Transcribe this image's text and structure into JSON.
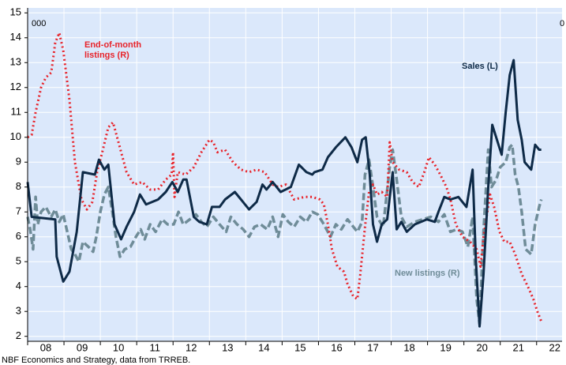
{
  "chart_data": {
    "type": "line",
    "unit_label_left": "000",
    "unit_label_right": "0",
    "source": "NBF Economics and Strategy, data from TRREB.",
    "ylim": [
      1.8,
      15.2
    ],
    "yticks": [
      2,
      3,
      4,
      5,
      6,
      7,
      8,
      9,
      10,
      11,
      12,
      13,
      14,
      15
    ],
    "xlim": [
      2008,
      2022.7
    ],
    "xticks": [
      {
        "value": 2008.5,
        "label": "08"
      },
      {
        "value": 2009.5,
        "label": "09"
      },
      {
        "value": 2010.5,
        "label": "10"
      },
      {
        "value": 2011.5,
        "label": "11"
      },
      {
        "value": 2012.5,
        "label": "12"
      },
      {
        "value": 2013.5,
        "label": "13"
      },
      {
        "value": 2014.5,
        "label": "14"
      },
      {
        "value": 2015.5,
        "label": "15"
      },
      {
        "value": 2016.5,
        "label": "16"
      },
      {
        "value": 2017.5,
        "label": "17"
      },
      {
        "value": 2018.5,
        "label": "18"
      },
      {
        "value": 2019.5,
        "label": "19"
      },
      {
        "value": 2020.5,
        "label": "20"
      },
      {
        "value": 2021.5,
        "label": "21"
      },
      {
        "value": 2022.5,
        "label": "22"
      }
    ],
    "grid": true,
    "background": "#dbe8fb",
    "series": [
      {
        "name": "Sales (L)",
        "color": "#0e2a47",
        "style": "solid",
        "x": [
          2008.0,
          2008.11,
          2008.76,
          2008.8,
          2008.98,
          2009.15,
          2009.35,
          2009.52,
          2009.85,
          2009.96,
          2010.11,
          2010.22,
          2010.39,
          2010.57,
          2010.72,
          2010.93,
          2011.09,
          2011.26,
          2011.59,
          2011.8,
          2011.98,
          2012.13,
          2012.28,
          2012.37,
          2012.57,
          2012.72,
          2012.93,
          2013.07,
          2013.28,
          2013.43,
          2013.7,
          2013.87,
          2014.09,
          2014.3,
          2014.46,
          2014.57,
          2014.74,
          2014.96,
          2015.24,
          2015.46,
          2015.67,
          2015.83,
          2015.89,
          2016.11,
          2016.26,
          2016.48,
          2016.74,
          2016.91,
          2017.07,
          2017.2,
          2017.3,
          2017.41,
          2017.5,
          2017.61,
          2017.74,
          2017.89,
          2018.04,
          2018.15,
          2018.28,
          2018.43,
          2018.65,
          2018.98,
          2019.2,
          2019.3,
          2019.46,
          2019.63,
          2019.85,
          2020.07,
          2020.24,
          2020.33,
          2020.43,
          2020.54,
          2020.67,
          2020.78,
          2020.93,
          2021.04,
          2021.15,
          2021.26,
          2021.37,
          2021.48,
          2021.59,
          2021.67,
          2021.85,
          2021.96,
          2022.07,
          2022.13
        ],
        "values": [
          8.2,
          6.8,
          6.7,
          5.2,
          4.2,
          4.6,
          6.2,
          8.6,
          8.5,
          9.1,
          8.7,
          8.9,
          6.5,
          5.9,
          6.4,
          7.0,
          7.7,
          7.3,
          7.5,
          7.8,
          8.2,
          7.8,
          8.3,
          8.3,
          6.8,
          6.6,
          6.5,
          7.2,
          7.2,
          7.5,
          7.8,
          7.5,
          7.1,
          7.4,
          8.1,
          7.9,
          8.2,
          7.8,
          8.0,
          8.9,
          8.6,
          8.5,
          8.6,
          8.7,
          9.2,
          9.6,
          10.0,
          9.6,
          9.0,
          9.9,
          10.0,
          8.5,
          6.5,
          5.8,
          6.5,
          6.7,
          8.6,
          6.3,
          6.6,
          6.2,
          6.5,
          6.7,
          6.6,
          7.0,
          7.6,
          7.5,
          7.6,
          7.2,
          8.7,
          5.0,
          2.4,
          4.5,
          8.0,
          10.5,
          9.8,
          9.3,
          11.0,
          12.5,
          13.1,
          10.7,
          9.9,
          9.0,
          8.7,
          9.7,
          9.5,
          9.5
        ]
      },
      {
        "name": "End-of-month listings (R)",
        "color": "#e8232a",
        "style": "dotted",
        "x": [
          2008.0,
          2008.11,
          2008.22,
          2008.37,
          2008.5,
          2008.65,
          2008.76,
          2008.87,
          2008.98,
          2009.15,
          2009.3,
          2009.48,
          2009.63,
          2009.78,
          2009.91,
          2010.07,
          2010.22,
          2010.35,
          2010.5,
          2010.72,
          2010.93,
          2011.15,
          2011.37,
          2011.59,
          2011.8,
          2011.96,
          2012.0,
          2012.04,
          2012.13,
          2012.35,
          2012.57,
          2012.78,
          2013.0,
          2013.11,
          2013.22,
          2013.43,
          2013.65,
          2013.87,
          2014.09,
          2014.3,
          2014.52,
          2014.74,
          2014.89,
          2015.11,
          2015.33,
          2015.61,
          2015.83,
          2016.04,
          2016.15,
          2016.26,
          2016.37,
          2016.52,
          2016.7,
          2016.8,
          2016.96,
          2017.07,
          2017.15,
          2017.28,
          2017.39,
          2017.5,
          2017.61,
          2017.74,
          2017.89,
          2017.96,
          2018.04,
          2018.22,
          2018.43,
          2018.59,
          2018.76,
          2018.91,
          2019.04,
          2019.2,
          2019.35,
          2019.52,
          2019.63,
          2019.78,
          2019.96,
          2020.17,
          2020.35,
          2020.46,
          2020.54,
          2020.72,
          2020.83,
          2020.98,
          2021.11,
          2021.26,
          2021.41,
          2021.59,
          2021.76,
          2021.91,
          2022.02,
          2022.13
        ],
        "values": [
          10.0,
          10.1,
          11.0,
          12.0,
          12.4,
          12.6,
          13.8,
          14.2,
          13.5,
          11.5,
          9.0,
          7.5,
          7.1,
          7.4,
          8.6,
          9.5,
          10.4,
          10.6,
          9.8,
          8.6,
          8.1,
          8.2,
          7.9,
          7.9,
          8.3,
          8.5,
          9.4,
          7.6,
          8.6,
          8.5,
          8.8,
          9.4,
          9.9,
          9.8,
          9.4,
          9.5,
          9.0,
          8.7,
          8.6,
          8.7,
          8.6,
          8.1,
          8.0,
          8.1,
          7.5,
          7.6,
          7.6,
          7.5,
          7.3,
          6.5,
          5.5,
          4.8,
          4.6,
          4.1,
          3.6,
          3.5,
          4.5,
          6.4,
          7.8,
          8.1,
          7.7,
          7.8,
          7.6,
          9.8,
          9.0,
          8.7,
          8.6,
          8.2,
          8.0,
          8.6,
          9.2,
          8.9,
          8.5,
          8.0,
          7.5,
          6.5,
          6.0,
          5.8,
          5.5,
          4.8,
          6.0,
          7.7,
          7.2,
          6.2,
          5.8,
          5.8,
          5.3,
          4.5,
          4.0,
          3.5,
          3.0,
          2.6
        ]
      },
      {
        "name": "New listings (R)",
        "color": "#6f8c98",
        "style": "dashed",
        "x": [
          2008.0,
          2008.07,
          2008.15,
          2008.22,
          2008.28,
          2008.37,
          2008.5,
          2008.65,
          2008.76,
          2008.87,
          2008.98,
          2009.09,
          2009.2,
          2009.3,
          2009.41,
          2009.52,
          2009.67,
          2009.8,
          2009.89,
          2010.0,
          2010.11,
          2010.22,
          2010.33,
          2010.43,
          2010.54,
          2010.67,
          2010.83,
          2010.98,
          2011.11,
          2011.22,
          2011.37,
          2011.52,
          2011.7,
          2011.85,
          2012.02,
          2012.15,
          2012.28,
          2012.46,
          2012.63,
          2012.78,
          2012.93,
          2013.11,
          2013.28,
          2013.46,
          2013.59,
          2013.76,
          2013.93,
          2014.09,
          2014.24,
          2014.41,
          2014.59,
          2014.74,
          2014.89,
          2015.02,
          2015.17,
          2015.33,
          2015.5,
          2015.67,
          2015.83,
          2015.98,
          2016.15,
          2016.33,
          2016.48,
          2016.63,
          2016.8,
          2016.96,
          2017.07,
          2017.2,
          2017.28,
          2017.39,
          2017.5,
          2017.61,
          2017.78,
          2017.96,
          2018.04,
          2018.15,
          2018.28,
          2018.43,
          2018.65,
          2018.87,
          2019.09,
          2019.3,
          2019.46,
          2019.63,
          2019.8,
          2019.96,
          2020.11,
          2020.24,
          2020.35,
          2020.43,
          2020.54,
          2020.67,
          2020.76,
          2020.89,
          2021.0,
          2021.15,
          2021.26,
          2021.33,
          2021.41,
          2021.5,
          2021.59,
          2021.7,
          2021.85,
          2021.96,
          2022.07,
          2022.13
        ],
        "values": [
          6.8,
          6.3,
          5.5,
          7.6,
          6.5,
          7.0,
          7.2,
          6.8,
          7.1,
          6.6,
          6.9,
          6.2,
          5.5,
          5.3,
          5.0,
          5.8,
          5.6,
          5.4,
          6.0,
          7.0,
          7.7,
          8.0,
          7.0,
          6.0,
          5.2,
          5.5,
          5.6,
          6.0,
          6.3,
          5.9,
          6.5,
          6.2,
          6.7,
          6.5,
          6.5,
          7.0,
          6.5,
          6.7,
          6.9,
          6.6,
          6.4,
          6.8,
          6.5,
          6.2,
          6.8,
          6.5,
          6.3,
          6.0,
          6.4,
          6.5,
          6.3,
          6.8,
          6.0,
          6.9,
          6.6,
          6.4,
          6.8,
          6.6,
          7.0,
          6.9,
          6.5,
          6.0,
          6.5,
          6.3,
          6.7,
          6.4,
          6.2,
          6.6,
          8.5,
          9.1,
          8.0,
          6.8,
          6.4,
          8.8,
          9.5,
          8.3,
          6.8,
          6.4,
          6.6,
          6.7,
          6.8,
          6.6,
          6.9,
          6.2,
          6.3,
          6.2,
          5.6,
          6.8,
          3.5,
          2.5,
          6.2,
          9.5,
          8.0,
          8.3,
          8.8,
          9.0,
          9.6,
          9.7,
          8.5,
          8.0,
          7.0,
          5.5,
          5.3,
          6.5,
          7.2,
          7.5
        ]
      }
    ]
  }
}
